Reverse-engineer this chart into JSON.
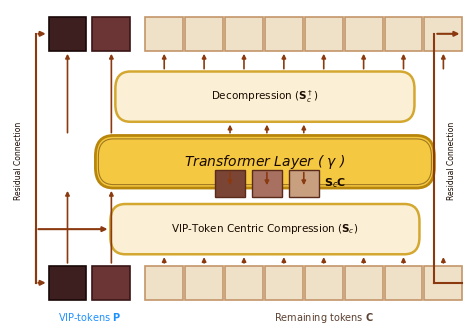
{
  "bg_color": "#ffffff",
  "arrow_color": "#8B3A10",
  "vip_token_color_1": "#3D1F1F",
  "vip_token_color_2": "#6B3535",
  "remaining_token_fill": "#EFE0C8",
  "remaining_token_edge": "#C4956A",
  "compressed_dark": "#7A4535",
  "compressed_mid": "#A87060",
  "compressed_light": "#C8A080",
  "transformer_fill": "#F5C842",
  "transformer_edge": "#B8860B",
  "transformer_edge2": "#A07820",
  "decompression_fill": "#FBF0D5",
  "decompression_edge": "#D4A830",
  "compression_fill": "#FBF0D5",
  "compression_edge": "#D4A830",
  "vip_label_color": "#1E90FF",
  "remaining_label_color": "#5A4030",
  "sc_label_color": "#1A0A00",
  "residual_label_color": "#1A0A00",
  "box_label_color": "#1A0A00"
}
